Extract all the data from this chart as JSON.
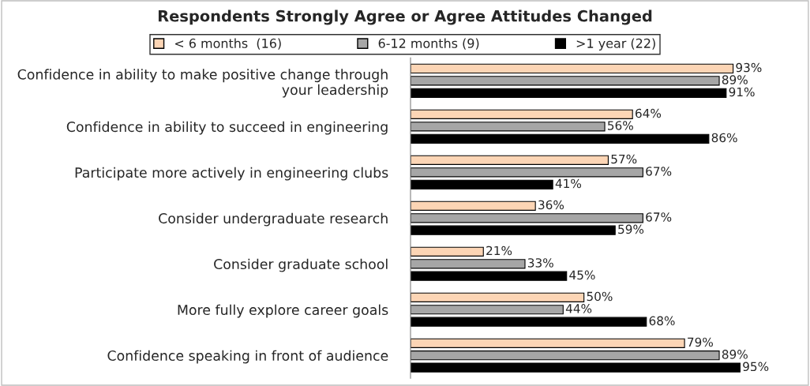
{
  "chart_data": {
    "type": "bar",
    "orientation": "horizontal",
    "title": "Respondents Strongly Agree or Agree Attitudes Changed",
    "categories": [
      "Confidence in ability to make positive change through your leadership",
      "Confidence in ability to succeed in engineering",
      "Participate more actively in engineering clubs",
      "Consider undergraduate research",
      "Consider graduate school",
      "More fully explore career goals",
      "Confidence speaking in front of audience"
    ],
    "series": [
      {
        "name": "< 6 months  (16)",
        "color": "#fcd5b5",
        "values": [
          93,
          64,
          57,
          36,
          21,
          50,
          79
        ],
        "value_labels": [
          "93%",
          "64%",
          "57%",
          "36%",
          "21%",
          "50%",
          "79%"
        ]
      },
      {
        "name": "6-12 months (9)",
        "color": "#a6a6a6",
        "values": [
          89,
          56,
          67,
          67,
          33,
          44,
          89
        ],
        "value_labels": [
          "89%",
          "56%",
          "67%",
          "67%",
          "33%",
          "44%",
          "89%"
        ]
      },
      {
        "name": ">1 year (22)",
        "color": "#000000",
        "values": [
          91,
          86,
          41,
          59,
          45,
          68,
          95
        ],
        "value_labels": [
          "91%",
          "86%",
          "41%",
          "59%",
          "45%",
          "68%",
          "95%"
        ]
      }
    ],
    "legend": "top",
    "grid": false
  }
}
